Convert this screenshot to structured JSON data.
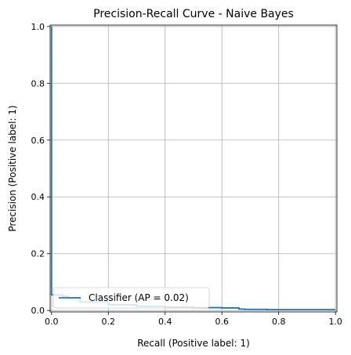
{
  "chart_data": {
    "type": "line",
    "title": "Precision-Recall Curve - Naive Bayes",
    "xlabel": "Recall (Positive label: 1)",
    "ylabel": "Precision (Positive label: 1)",
    "xlim": [
      -0.005,
      1.005
    ],
    "ylim": [
      -0.005,
      1.005
    ],
    "xticks": [
      0.0,
      0.2,
      0.4,
      0.6,
      0.8,
      1.0
    ],
    "yticks": [
      0.0,
      0.2,
      0.4,
      0.6,
      0.8,
      1.0
    ],
    "xtick_labels": [
      "0.0",
      "0.2",
      "0.4",
      "0.6",
      "0.8",
      "1.0"
    ],
    "ytick_labels": [
      "0.0",
      "0.2",
      "0.4",
      "0.6",
      "0.8",
      "1.0"
    ],
    "grid": true,
    "legend_position": "lower-left",
    "series": [
      {
        "name": "Classifier (AP = 0.02)",
        "color": "#1f77b4",
        "drawstyle": "steps-post",
        "x": [
          1.0,
          0.8,
          0.76,
          0.68,
          0.66,
          0.6,
          0.5,
          0.4,
          0.3,
          0.2,
          0.1,
          0.06,
          0.04,
          0.02,
          0.0,
          0.0
        ],
        "y": [
          0.003,
          0.003,
          0.004,
          0.005,
          0.009,
          0.01,
          0.012,
          0.015,
          0.02,
          0.03,
          0.045,
          0.05,
          0.055,
          0.055,
          0.055,
          1.0
        ]
      }
    ]
  }
}
